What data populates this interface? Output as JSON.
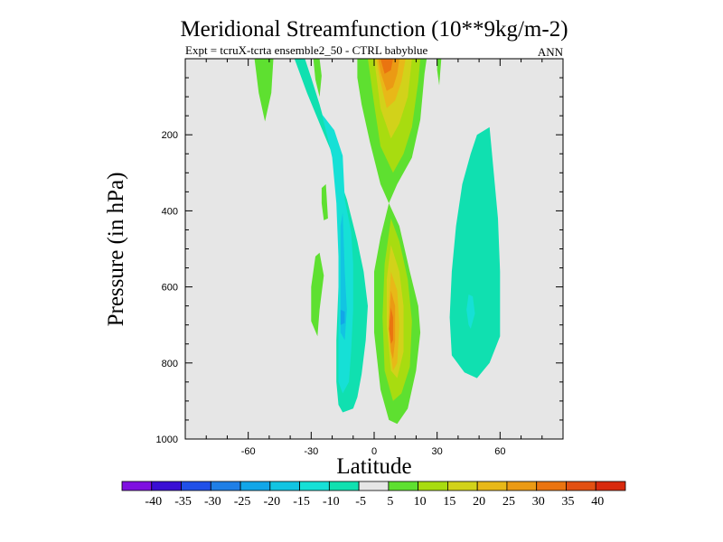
{
  "chart_data": {
    "type": "contour",
    "title": "Meridional Streamfunction (10**9kg/m-2)",
    "subtitle": "Expt = tcruX-tcrta ensemble2_50 - CTRL babyblue",
    "season": "ANN",
    "xlabel": "Latitude",
    "ylabel": "Pressure (in hPa)",
    "xlim": [
      -90,
      90
    ],
    "ylim": [
      1000,
      0
    ],
    "x_ticks": [
      -60,
      -30,
      0,
      30,
      60
    ],
    "x_tick_labels": [
      "-60",
      "-30",
      "0",
      "30",
      "60"
    ],
    "y_ticks": [
      200,
      400,
      600,
      800,
      1000
    ],
    "y_tick_labels": [
      "200",
      "400",
      "600",
      "800",
      "1000"
    ],
    "background_color": "#e6e6e6",
    "colorbar": {
      "levels": [
        "-40",
        "-35",
        "-30",
        "-25",
        "-20",
        "-15",
        "-10",
        "-5",
        "5",
        "10",
        "15",
        "20",
        "25",
        "30",
        "35",
        "40"
      ],
      "colors": [
        "#7f10e0",
        "#3a0fd4",
        "#2050e8",
        "#1f7fe6",
        "#12a6e8",
        "#12c4e2",
        "#16e0d6",
        "#10e0b0",
        "#e6e6e6",
        "#5ee030",
        "#a8dc10",
        "#d2d21a",
        "#e8b818",
        "#eb9a14",
        "#ea7410",
        "#e25012",
        "#d82a0e"
      ]
    },
    "regions": [
      {
        "name": "sh-upper-cell",
        "value": -10,
        "points": [
          [
            -38,
            0
          ],
          [
            -33,
            0
          ],
          [
            -30,
            50
          ],
          [
            -26,
            120
          ],
          [
            -22,
            200
          ],
          [
            -18,
            290
          ],
          [
            -13,
            370
          ],
          [
            -8,
            480
          ],
          [
            -5,
            560
          ],
          [
            -3,
            650
          ],
          [
            -4,
            740
          ],
          [
            -6,
            830
          ],
          [
            -8,
            890
          ],
          [
            -10,
            920
          ],
          [
            -15,
            930
          ],
          [
            -17,
            910
          ],
          [
            -18,
            850
          ],
          [
            -18,
            740
          ],
          [
            -17,
            600
          ],
          [
            -16,
            450
          ],
          [
            -16,
            330
          ],
          [
            -20,
            250
          ],
          [
            -26,
            170
          ],
          [
            -32,
            90
          ]
        ]
      },
      {
        "name": "sh-mid-cell",
        "value": -15,
        "points": [
          [
            -25,
            145
          ],
          [
            -19,
            188
          ],
          [
            -15,
            255
          ],
          [
            -14,
            370
          ],
          [
            -11,
            455
          ],
          [
            -10,
            540
          ],
          [
            -10,
            660
          ],
          [
            -11,
            770
          ],
          [
            -12,
            850
          ],
          [
            -15,
            880
          ],
          [
            -17,
            850
          ],
          [
            -17,
            680
          ],
          [
            -17,
            520
          ],
          [
            -18,
            380
          ],
          [
            -20,
            260
          ],
          [
            -22,
            210
          ]
        ]
      },
      {
        "name": "sh-core",
        "value": -20,
        "points": [
          [
            -15,
            405
          ],
          [
            -14,
            560
          ],
          [
            -13,
            660
          ],
          [
            -14,
            740
          ],
          [
            -16,
            720
          ],
          [
            -16,
            580
          ],
          [
            -16,
            440
          ]
        ]
      },
      {
        "name": "sh-small-core",
        "value": -25,
        "points": [
          [
            -16,
            660
          ],
          [
            -14,
            665
          ],
          [
            -14,
            695
          ],
          [
            -16,
            700
          ]
        ]
      },
      {
        "name": "nh-extratropical-cell",
        "value": -10,
        "points": [
          [
            49,
            200
          ],
          [
            55,
            180
          ],
          [
            59,
            420
          ],
          [
            60,
            560
          ],
          [
            60,
            730
          ],
          [
            55,
            800
          ],
          [
            49,
            840
          ],
          [
            43,
            825
          ],
          [
            37,
            780
          ],
          [
            36,
            680
          ],
          [
            37,
            560
          ],
          [
            39,
            440
          ],
          [
            42,
            330
          ],
          [
            46,
            250
          ]
        ]
      },
      {
        "name": "nh-extratropical-core",
        "value": -15,
        "points": [
          [
            44,
            660
          ],
          [
            45,
            620
          ],
          [
            47,
            625
          ],
          [
            48,
            670
          ],
          [
            46,
            710
          ],
          [
            45,
            700
          ]
        ]
      },
      {
        "name": "sh-polar-lobe",
        "value": 5,
        "points": [
          [
            -57,
            0
          ],
          [
            -48,
            0
          ],
          [
            -49,
            90
          ],
          [
            -52,
            165
          ],
          [
            -55,
            90
          ]
        ]
      },
      {
        "name": "sh-strip-upper",
        "value": 5,
        "points": [
          [
            -25,
            340
          ],
          [
            -23,
            330
          ],
          [
            -22,
            420
          ],
          [
            -24,
            425
          ],
          [
            -25,
            380
          ]
        ]
      },
      {
        "name": "sh-strip-lower",
        "value": 5,
        "points": [
          [
            -28,
            520
          ],
          [
            -26,
            510
          ],
          [
            -24,
            570
          ],
          [
            -26,
            660
          ],
          [
            -27,
            730
          ],
          [
            -30,
            690
          ],
          [
            -30,
            600
          ]
        ]
      },
      {
        "name": "sh-upper-edge",
        "value": 5,
        "points": [
          [
            -29,
            0
          ],
          [
            -26,
            0
          ],
          [
            -25,
            45
          ],
          [
            -26,
            100
          ],
          [
            -28,
            55
          ]
        ]
      },
      {
        "name": "nh-upper-edge",
        "value": 5,
        "points": [
          [
            30,
            0
          ],
          [
            32,
            0
          ],
          [
            31,
            70
          ],
          [
            30,
            30
          ]
        ]
      },
      {
        "name": "hadley-upper",
        "value": 5,
        "points": [
          [
            -8,
            0
          ],
          [
            25,
            0
          ],
          [
            24,
            40
          ],
          [
            22,
            160
          ],
          [
            18,
            260
          ],
          [
            11,
            330
          ],
          [
            7,
            380
          ],
          [
            3,
            330
          ],
          [
            -2,
            220
          ],
          [
            -6,
            120
          ],
          [
            -8,
            50
          ]
        ]
      },
      {
        "name": "hadley-lower",
        "value": 5,
        "points": [
          [
            7,
            380
          ],
          [
            12,
            440
          ],
          [
            17,
            560
          ],
          [
            21,
            650
          ],
          [
            22,
            720
          ],
          [
            20,
            820
          ],
          [
            16,
            920
          ],
          [
            11,
            960
          ],
          [
            7,
            950
          ],
          [
            3,
            870
          ],
          [
            0,
            720
          ],
          [
            0,
            560
          ],
          [
            3,
            470
          ]
        ]
      },
      {
        "name": "hadley-upper-10",
        "value": 10,
        "points": [
          [
            -3,
            0
          ],
          [
            22,
            0
          ],
          [
            21,
            60
          ],
          [
            18,
            180
          ],
          [
            14,
            250
          ],
          [
            9,
            300
          ],
          [
            3,
            230
          ],
          [
            0,
            120
          ],
          [
            -2,
            40
          ]
        ]
      },
      {
        "name": "hadley-lower-10",
        "value": 10,
        "points": [
          [
            8,
            420
          ],
          [
            12,
            480
          ],
          [
            16,
            580
          ],
          [
            18,
            690
          ],
          [
            17,
            810
          ],
          [
            13,
            880
          ],
          [
            9,
            900
          ],
          [
            5,
            820
          ],
          [
            4,
            680
          ],
          [
            5,
            540
          ]
        ]
      },
      {
        "name": "hadley-upper-15",
        "value": 15,
        "points": [
          [
            0,
            0
          ],
          [
            18,
            0
          ],
          [
            16,
            100
          ],
          [
            12,
            170
          ],
          [
            8,
            210
          ],
          [
            3,
            130
          ]
        ]
      },
      {
        "name": "hadley-lower-15",
        "value": 15,
        "points": [
          [
            8,
            490
          ],
          [
            12,
            560
          ],
          [
            14,
            650
          ],
          [
            14,
            770
          ],
          [
            11,
            840
          ],
          [
            8,
            820
          ],
          [
            6,
            700
          ],
          [
            6,
            580
          ]
        ]
      },
      {
        "name": "hadley-upper-20",
        "value": 20,
        "points": [
          [
            1,
            0
          ],
          [
            15,
            0
          ],
          [
            13,
            60
          ],
          [
            10,
            110
          ],
          [
            6,
            130
          ],
          [
            3,
            60
          ]
        ]
      },
      {
        "name": "hadley-lower-20",
        "value": 20,
        "points": [
          [
            8,
            560
          ],
          [
            11,
            610
          ],
          [
            12,
            700
          ],
          [
            11,
            800
          ],
          [
            9,
            820
          ],
          [
            7,
            740
          ],
          [
            7,
            640
          ]
        ]
      },
      {
        "name": "hadley-upper-25",
        "value": 25,
        "points": [
          [
            2,
            0
          ],
          [
            12,
            0
          ],
          [
            11,
            40
          ],
          [
            9,
            75
          ],
          [
            6,
            85
          ],
          [
            3,
            35
          ]
        ]
      },
      {
        "name": "hadley-lower-25",
        "value": 25,
        "points": [
          [
            8,
            610
          ],
          [
            10,
            650
          ],
          [
            10,
            740
          ],
          [
            9,
            790
          ],
          [
            8,
            770
          ],
          [
            7,
            690
          ]
        ]
      },
      {
        "name": "hadley-upper-30",
        "value": 30,
        "points": [
          [
            3,
            0
          ],
          [
            9,
            0
          ],
          [
            8,
            30
          ],
          [
            5,
            40
          ]
        ]
      },
      {
        "name": "hadley-lower-30",
        "value": 30,
        "points": [
          [
            8,
            655
          ],
          [
            9,
            680
          ],
          [
            9,
            740
          ],
          [
            8,
            750
          ],
          [
            7,
            710
          ]
        ]
      }
    ]
  }
}
